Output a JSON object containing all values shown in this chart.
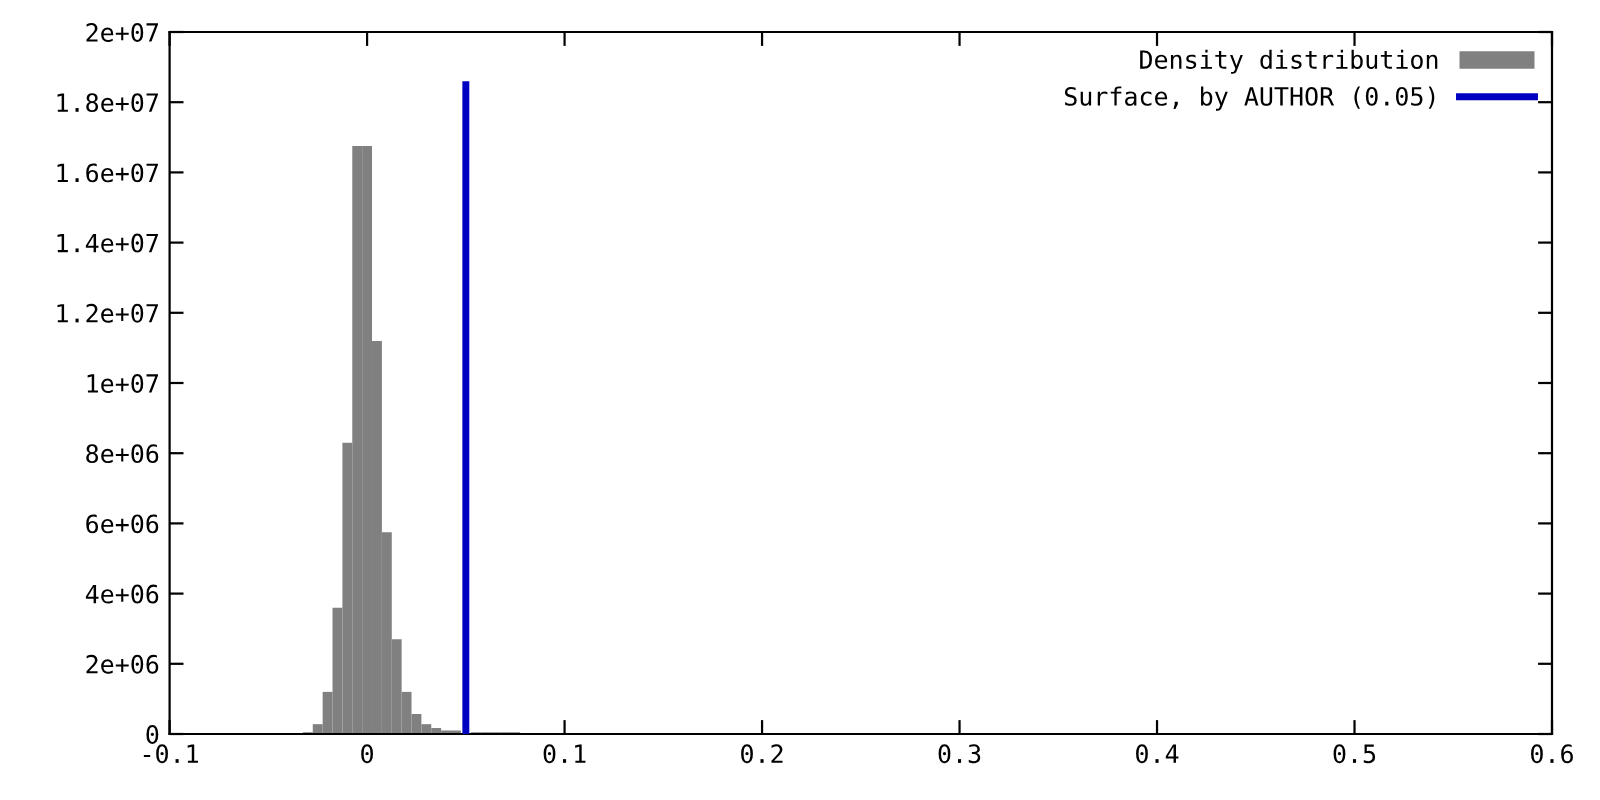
{
  "chart_data": {
    "type": "histogram",
    "bins": [
      -0.0325,
      -0.0275,
      -0.0225,
      -0.0175,
      -0.0125,
      -0.0075,
      -0.0025,
      0.0025,
      0.0075,
      0.0125,
      0.0175,
      0.0225,
      0.0275,
      0.0325,
      0.0375,
      0.0425,
      0.0475,
      0.0525,
      0.0575,
      0.0625,
      0.0675,
      0.0725,
      0.0775
    ],
    "series": [
      {
        "name": "Density distribution",
        "type": "histogram",
        "color": "#808080",
        "values": [
          50000,
          280000,
          1200000,
          3600000,
          8300000,
          16750000,
          16750000,
          11200000,
          5750000,
          2700000,
          1200000,
          570000,
          280000,
          170000,
          100000,
          100000,
          null,
          50000,
          50000,
          50000,
          50000,
          50000
        ]
      },
      {
        "name": "Surface, by AUTHOR (0.05)",
        "type": "line",
        "color": "#0000c0",
        "x": [
          0.05,
          0.05
        ],
        "values": [
          0,
          18500000
        ]
      }
    ],
    "xlim": [
      -0.1,
      0.6
    ],
    "xticks": [
      -0.1,
      0,
      0.1,
      0.2,
      0.3,
      0.4,
      0.5,
      0.6
    ],
    "ylim": [
      0,
      20000000
    ],
    "yticks": [
      {
        "value": 0,
        "label": "0"
      },
      {
        "value": 2000000,
        "label": "2e+06"
      },
      {
        "value": 4000000,
        "label": "4e+06"
      },
      {
        "value": 6000000,
        "label": "6e+06"
      },
      {
        "value": 8000000,
        "label": "8e+06"
      },
      {
        "value": 10000000,
        "label": "1e+07"
      },
      {
        "value": 12000000,
        "label": "1.2e+07"
      },
      {
        "value": 14000000,
        "label": "1.4e+07"
      },
      {
        "value": 16000000,
        "label": "1.6e+07"
      },
      {
        "value": 18000000,
        "label": "1.8e+07"
      },
      {
        "value": 20000000,
        "label": "2e+07"
      }
    ],
    "legend": "top right",
    "grid": false
  }
}
